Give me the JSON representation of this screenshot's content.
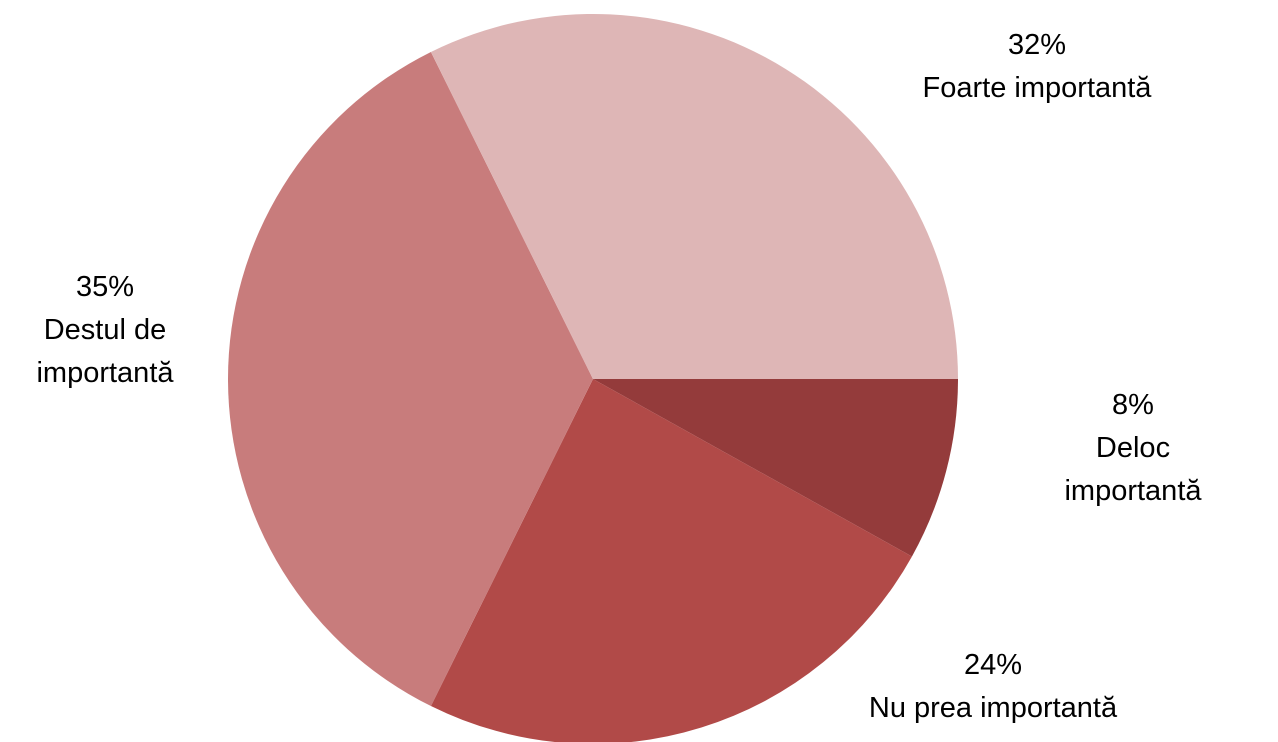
{
  "chart_data": {
    "type": "pie",
    "categories": [
      "Deloc importantă",
      "Nu prea importantă",
      "Destul de importantă",
      "Foarte importantă"
    ],
    "values": [
      8,
      24,
      35,
      32
    ],
    "value_labels": [
      "8%",
      "24%",
      "35%",
      "32%"
    ],
    "colors": [
      "#943b3b",
      "#b14a48",
      "#c87c7c",
      "#deb6b6"
    ]
  }
}
